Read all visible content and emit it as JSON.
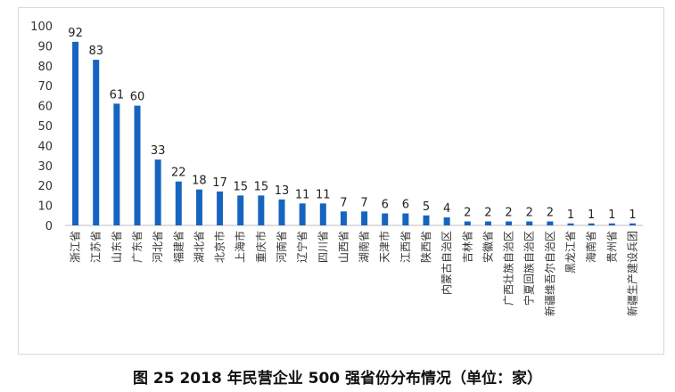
{
  "caption": "图 25 2018 年民营企业 500 强省份分布情况（单位：家）",
  "chart_data": {
    "type": "bar",
    "categories": [
      "浙江省",
      "江苏省",
      "山东省",
      "广东省",
      "河北省",
      "福建省",
      "湖北省",
      "北京市",
      "上海市",
      "重庆市",
      "河南省",
      "辽宁省",
      "四川省",
      "山西省",
      "湖南省",
      "天津市",
      "江西省",
      "陕西省",
      "内蒙古自治区",
      "吉林省",
      "安徽省",
      "广西壮族自治区",
      "宁夏回族自治区",
      "新疆维吾尔自治区",
      "黑龙江省",
      "海南省",
      "贵州省",
      "新疆生产建设兵团"
    ],
    "values": [
      92,
      83,
      61,
      60,
      33,
      22,
      18,
      17,
      15,
      15,
      13,
      11,
      11,
      7,
      7,
      6,
      6,
      5,
      4,
      2,
      2,
      2,
      2,
      2,
      1,
      1,
      1,
      1
    ],
    "ylim": [
      0,
      100
    ],
    "yticks": [
      0,
      10,
      20,
      30,
      40,
      50,
      60,
      70,
      80,
      90,
      100
    ],
    "grid": false,
    "bar_color": "#1565C0",
    "data_labels": true
  }
}
